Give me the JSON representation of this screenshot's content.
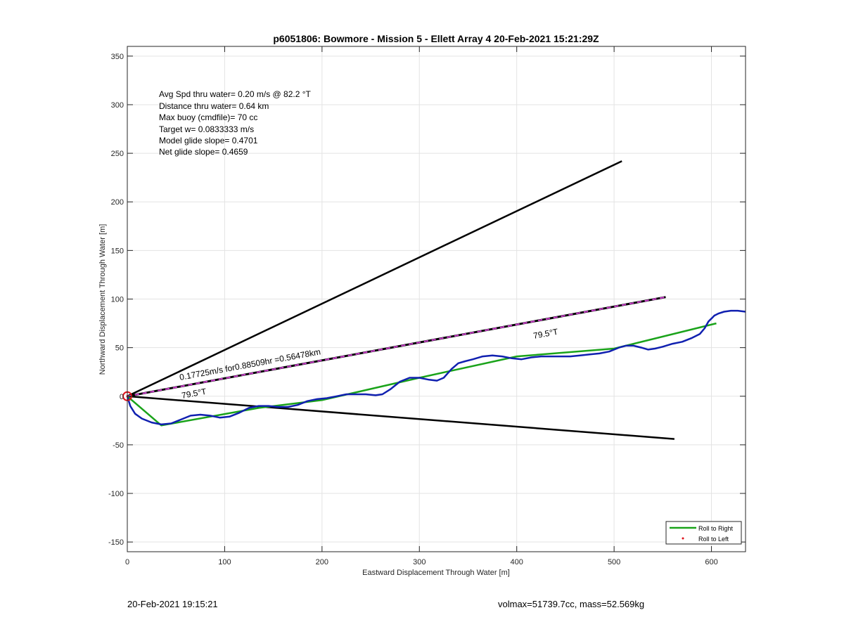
{
  "chart_data": {
    "type": "line",
    "title": "p6051806: Bowmore - Mission 5 - Ellett Array 4 20-Feb-2021 15:21:29Z",
    "xlabel": "Eastward Displacement Through Water [m]",
    "ylabel": "Northward Displacement Through Water [m]",
    "xlim": [
      0,
      635
    ],
    "ylim": [
      -160,
      360
    ],
    "xticks": [
      0,
      100,
      200,
      300,
      400,
      500,
      600
    ],
    "yticks": [
      -150,
      -100,
      -50,
      0,
      50,
      100,
      150,
      200,
      250,
      300,
      350
    ],
    "xtick_labels": [
      "0",
      "100",
      "200",
      "300",
      "400",
      "500",
      "600"
    ],
    "ytick_labels": [
      "-150",
      "-100",
      "-50",
      "0",
      "50",
      "100",
      "150",
      "200",
      "250",
      "300",
      "350"
    ],
    "grid": true,
    "legend_position": "bottom-right",
    "legend": [
      {
        "label": "Roll to Right",
        "color": "#1aa31a",
        "style": "line"
      },
      {
        "label": "Roll to Left",
        "color": "#e0101a",
        "style": "dot"
      }
    ],
    "info_lines": [
      "Avg Spd thru water=  0.20 m/s @  82.2 °T",
      "Distance thru water=  0.64 km",
      "Max buoy (cmdfile)= 70 cc",
      "Target w= 0.0833333 m/s",
      "Model glide slope= 0.4701",
      "Net glide slope= 0.4659"
    ],
    "annotations": {
      "speed_label": "0.17725m/s for0.88509hr =0.56478km",
      "heading_lower": "79.5°T",
      "heading_upper": "79.5°T"
    },
    "series": [
      {
        "role": "upper-bound-line",
        "color": "#000000",
        "x": [
          0,
          508
        ],
        "y": [
          0,
          242
        ]
      },
      {
        "role": "heading-line",
        "color": "#000000",
        "dash_color": "#d040d0",
        "x": [
          0,
          553
        ],
        "y": [
          0,
          102
        ]
      },
      {
        "role": "lower-bound-line",
        "color": "#000000",
        "x": [
          0,
          562
        ],
        "y": [
          0,
          -44
        ]
      },
      {
        "role": "roll-to-right",
        "color": "#1aa31a",
        "x": [
          0,
          35,
          135,
          200,
          300,
          400,
          500,
          605
        ],
        "y": [
          0,
          -30,
          -12,
          -4,
          19,
          41,
          49,
          75
        ]
      },
      {
        "role": "track",
        "color": "#1020b0",
        "x": [
          0,
          3,
          8,
          15,
          25,
          35,
          45,
          55,
          65,
          75,
          85,
          95,
          105,
          115,
          125,
          135,
          145,
          155,
          165,
          175,
          185,
          195,
          205,
          215,
          225,
          235,
          245,
          255,
          262,
          270,
          280,
          290,
          300,
          310,
          318,
          325,
          333,
          340,
          347,
          355,
          365,
          375,
          385,
          395,
          405,
          415,
          425,
          435,
          445,
          455,
          465,
          475,
          485,
          495,
          505,
          512,
          520,
          528,
          535,
          542,
          550,
          560,
          570,
          580,
          588,
          593,
          597,
          600,
          603,
          607,
          613,
          620,
          627,
          635
        ],
        "y": [
          0,
          -10,
          -18,
          -23,
          -27,
          -29,
          -28,
          -24,
          -20,
          -19,
          -20,
          -22,
          -21,
          -17,
          -12,
          -10,
          -10,
          -11,
          -11,
          -9,
          -5,
          -3,
          -2,
          0,
          2,
          2,
          2,
          1,
          2,
          7,
          15,
          19,
          19,
          17,
          16,
          19,
          28,
          34,
          36,
          38,
          41,
          42,
          41,
          39,
          38,
          40,
          41,
          41,
          41,
          41,
          42,
          43,
          44,
          46,
          50,
          52,
          52,
          50,
          48,
          49,
          51,
          54,
          56,
          60,
          64,
          70,
          77,
          80,
          83,
          85,
          87,
          88,
          88,
          87
        ]
      },
      {
        "role": "roll-to-left",
        "color": "#e0101a",
        "x": [
          0
        ],
        "y": [
          0
        ]
      }
    ]
  },
  "footer": {
    "left": "20-Feb-2021 19:15:21",
    "right": "volmax=51739.7cc, mass=52.569kg"
  }
}
